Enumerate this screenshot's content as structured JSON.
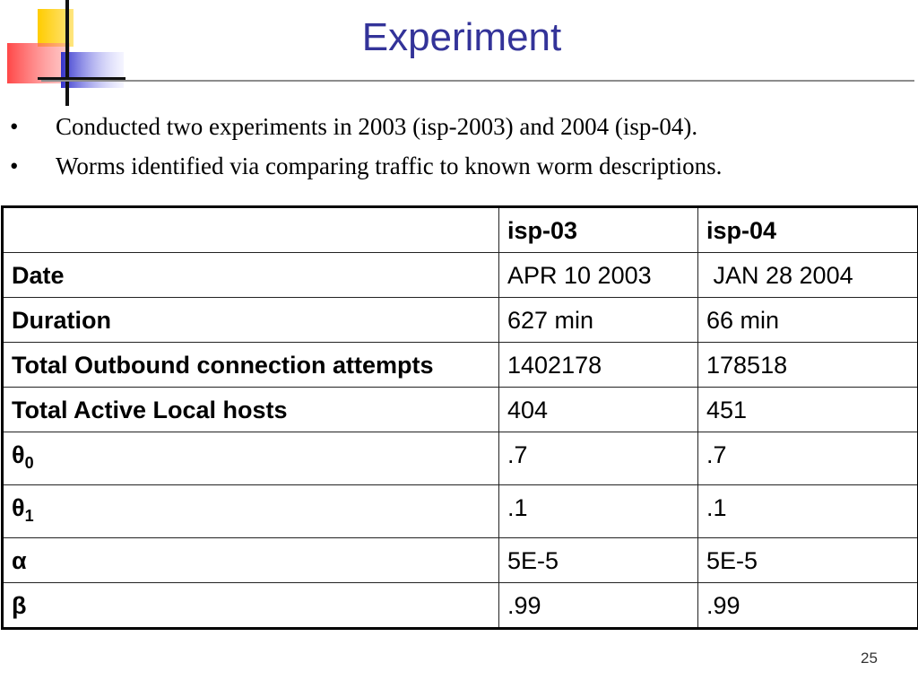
{
  "slide": {
    "title": "Experiment",
    "bullets": [
      {
        "marker": "•",
        "text": "Conducted two experiments in 2003 (isp-2003) and 2004 (isp-04)."
      },
      {
        "marker": "•",
        "text": "Worms identified via comparing traffic to known worm descriptions."
      }
    ],
    "page_number": "25"
  },
  "table": {
    "columns": [
      "",
      "isp-03",
      "isp-04"
    ],
    "rows": [
      {
        "label": "Date",
        "sub": "",
        "isp03": "APR 10 2003",
        "isp04": " JAN 28 2004"
      },
      {
        "label": "Duration",
        "sub": "",
        "isp03": "627 min",
        "isp04": "66 min"
      },
      {
        "label": "Total Outbound connection attempts",
        "sub": "",
        "isp03": "1402178",
        "isp04": "178518"
      },
      {
        "label": "Total Active Local hosts",
        "sub": "",
        "isp03": "404",
        "isp04": "451"
      },
      {
        "label": "θ",
        "sub": "0",
        "isp03": ".7",
        "isp04": ".7"
      },
      {
        "label": "θ",
        "sub": "1",
        "isp03": ".1",
        "isp04": ".1"
      },
      {
        "label": "α",
        "sub": "",
        "isp03": "5E-5",
        "isp04": "5E-5"
      },
      {
        "label": "β",
        "sub": "",
        "isp03": ".99",
        "isp04": ".99"
      }
    ]
  },
  "colors": {
    "title": "#333399",
    "logo_yellow": "#ffcc00",
    "logo_red": "#ff3333",
    "logo_blue": "#3333cc"
  }
}
